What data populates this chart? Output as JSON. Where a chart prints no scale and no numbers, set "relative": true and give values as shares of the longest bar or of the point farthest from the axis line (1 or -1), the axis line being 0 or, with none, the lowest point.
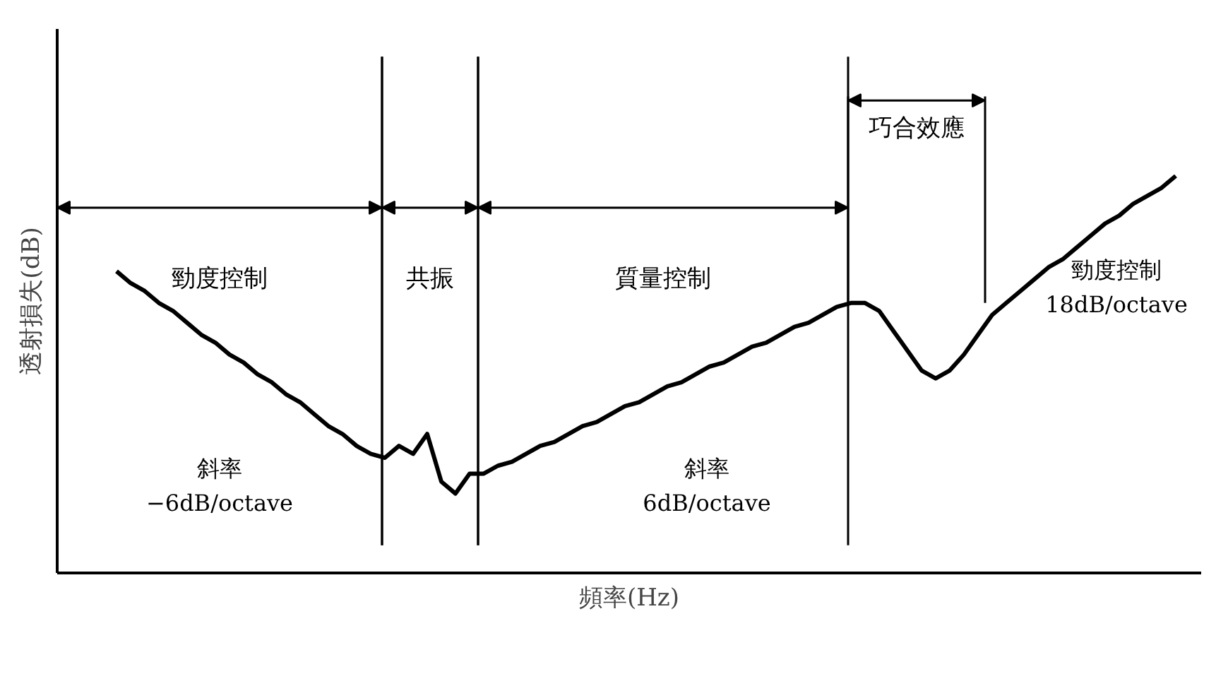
{
  "chart_data": {
    "type": "line",
    "relative": true,
    "color": "#000000",
    "xlabel": "頻率(Hz)",
    "ylabel": "透射損失(dB)",
    "categories": [
      null,
      null,
      null,
      null,
      null,
      null,
      null,
      null,
      null,
      null,
      null,
      null,
      null,
      null,
      null,
      null,
      null,
      null,
      null,
      null,
      null,
      null,
      null,
      null,
      null,
      null,
      null,
      null,
      null,
      null,
      null,
      null,
      null,
      null,
      null,
      null,
      null,
      null,
      null,
      null,
      null,
      null,
      null,
      null,
      null,
      null,
      null,
      null,
      null,
      null,
      null,
      null,
      null,
      null,
      null,
      null,
      null,
      null,
      null,
      null,
      null,
      null,
      null,
      null,
      null,
      null,
      null,
      null,
      null,
      null,
      null,
      null,
      null,
      null,
      null,
      null
    ],
    "values": [
      0.76,
      0.73,
      0.71,
      0.68,
      0.66,
      0.63,
      0.6,
      0.58,
      0.55,
      0.53,
      0.5,
      0.48,
      0.45,
      0.43,
      0.4,
      0.37,
      0.35,
      0.32,
      0.3,
      0.29,
      0.32,
      0.3,
      0.35,
      0.23,
      0.2,
      0.25,
      0.25,
      0.27,
      0.28,
      0.3,
      0.32,
      0.33,
      0.35,
      0.37,
      0.38,
      0.4,
      0.42,
      0.43,
      0.45,
      0.47,
      0.48,
      0.5,
      0.52,
      0.53,
      0.55,
      0.57,
      0.58,
      0.6,
      0.62,
      0.63,
      0.65,
      0.67,
      0.68,
      0.68,
      0.66,
      0.61,
      0.56,
      0.51,
      0.49,
      0.51,
      0.55,
      0.6,
      0.65,
      0.68,
      0.71,
      0.74,
      0.77,
      0.79,
      0.82,
      0.85,
      0.88,
      0.9,
      0.93,
      0.95,
      0.97,
      1.0
    ],
    "annotations": [
      "勁度控制",
      "共振",
      "質量控制",
      "巧合效應",
      "斜率\n−6dB/octave",
      "斜率\n6dB/octave",
      "勁度控制\n18dB/octave"
    ]
  }
}
